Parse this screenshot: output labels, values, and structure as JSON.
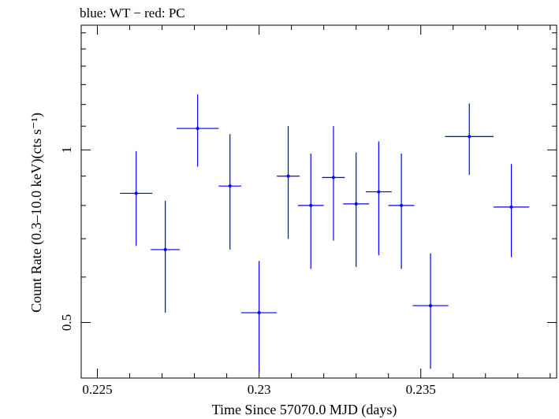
{
  "chart_data": {
    "type": "scatter",
    "title": "blue: WT − red: PC",
    "xlabel": "Time Since 57070.0 MJD (days)",
    "ylabel": "Count Rate (0.3–10.0 keV)(cts s⁻¹)",
    "y_scale": "log",
    "xlim": [
      0.2245,
      0.2392
    ],
    "ylim": [
      0.4,
      1.65
    ],
    "x_ticks": [
      {
        "value": 0.225,
        "label": "0.225"
      },
      {
        "value": 0.23,
        "label": "0.23"
      },
      {
        "value": 0.235,
        "label": "0.235"
      }
    ],
    "y_ticks": [
      {
        "value": 0.5,
        "label": "0.5"
      },
      {
        "value": 1,
        "label": "1"
      }
    ],
    "grid": false,
    "series": [
      {
        "name": "WT",
        "color": "#0000ff",
        "points": [
          {
            "x": 0.2262,
            "y": 0.84,
            "xerr": 0.0005,
            "ylo": 0.68,
            "yhi": 0.995
          },
          {
            "x": 0.2271,
            "y": 0.67,
            "xerr": 0.00045,
            "ylo": 0.52,
            "yhi": 0.815
          },
          {
            "x": 0.2281,
            "y": 1.09,
            "xerr": 0.00065,
            "ylo": 0.935,
            "yhi": 1.25
          },
          {
            "x": 0.2291,
            "y": 0.865,
            "xerr": 0.00035,
            "ylo": 0.67,
            "yhi": 1.065
          },
          {
            "x": 0.23,
            "y": 0.52,
            "xerr": 0.00055,
            "ylo": 0.41,
            "yhi": 0.64
          },
          {
            "x": 0.2309,
            "y": 0.9,
            "xerr": 0.00035,
            "ylo": 0.7,
            "yhi": 1.1
          },
          {
            "x": 0.2316,
            "y": 0.8,
            "xerr": 0.0004,
            "ylo": 0.62,
            "yhi": 0.985
          },
          {
            "x": 0.2323,
            "y": 0.895,
            "xerr": 0.00035,
            "ylo": 0.695,
            "yhi": 1.1
          },
          {
            "x": 0.233,
            "y": 0.805,
            "xerr": 0.0004,
            "ylo": 0.625,
            "yhi": 0.99
          },
          {
            "x": 0.2337,
            "y": 0.845,
            "xerr": 0.0004,
            "ylo": 0.655,
            "yhi": 1.035
          },
          {
            "x": 0.2344,
            "y": 0.8,
            "xerr": 0.0004,
            "ylo": 0.62,
            "yhi": 0.985
          },
          {
            "x": 0.2353,
            "y": 0.535,
            "xerr": 0.00055,
            "ylo": 0.415,
            "yhi": 0.66
          },
          {
            "x": 0.2365,
            "y": 1.055,
            "xerr": 0.00075,
            "ylo": 0.905,
            "yhi": 1.205
          },
          {
            "x": 0.2378,
            "y": 0.795,
            "xerr": 0.00055,
            "ylo": 0.65,
            "yhi": 0.945
          }
        ]
      }
    ]
  }
}
